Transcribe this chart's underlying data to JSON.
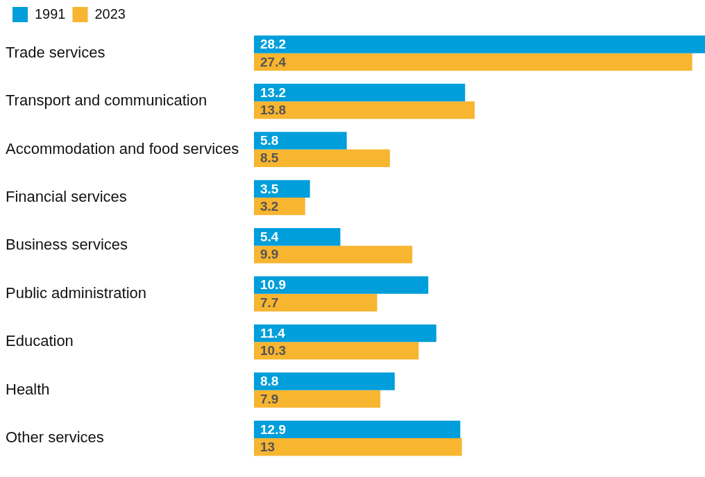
{
  "chart_data": {
    "type": "bar",
    "orientation": "horizontal",
    "categories": [
      "Trade services",
      "Transport and communication",
      "Accommodation and food services",
      "Financial services",
      "Business services",
      "Public administration",
      "Education",
      "Health",
      "Other services"
    ],
    "series": [
      {
        "name": "1991",
        "color": "#009edb",
        "values": [
          28.2,
          13.2,
          5.8,
          3.5,
          5.4,
          10.9,
          11.4,
          8.8,
          12.9
        ]
      },
      {
        "name": "2023",
        "color": "#f7b530",
        "values": [
          27.4,
          13.8,
          8.5,
          3.2,
          9.9,
          7.7,
          10.3,
          7.9,
          13
        ]
      }
    ],
    "xlim": [
      0,
      28.2
    ],
    "data_labels": true,
    "tick_labels": "y",
    "legend": "top left"
  }
}
